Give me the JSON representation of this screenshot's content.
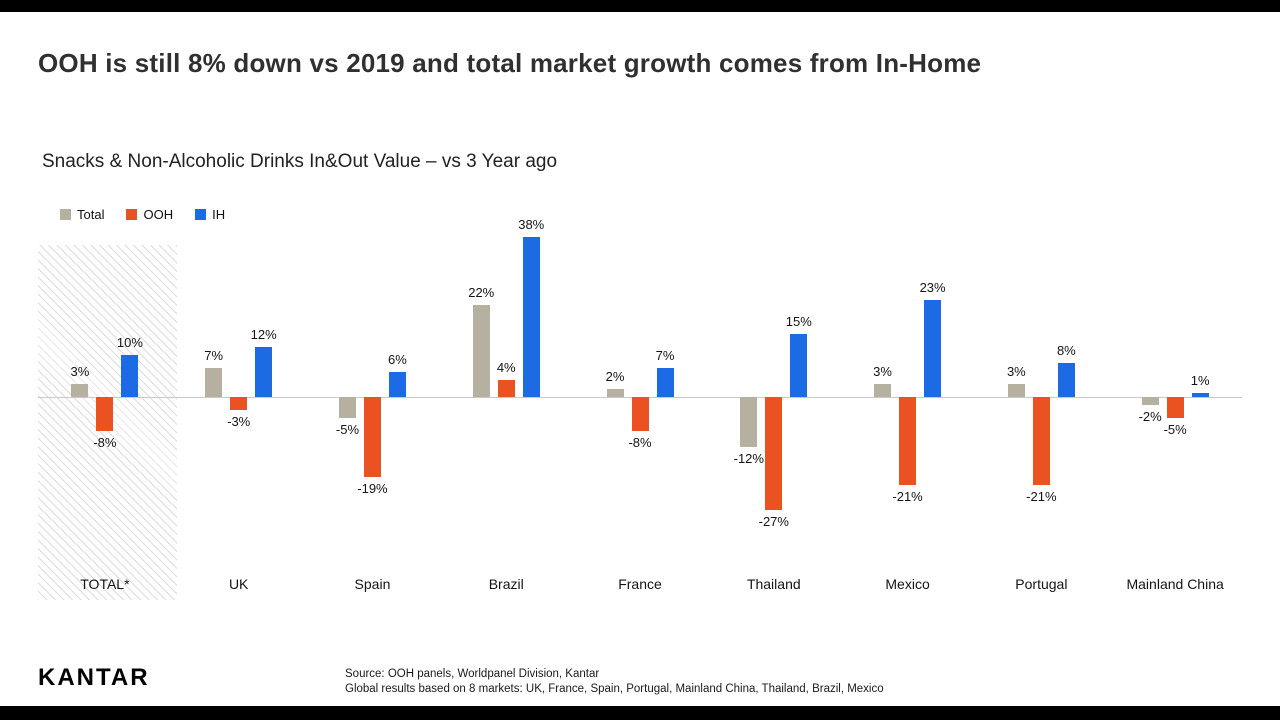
{
  "slide": {
    "title": "OOH is still 8% down vs 2019 and total market growth comes from In-Home",
    "subtitle": "Snacks & Non-Alcoholic Drinks In&Out Value – vs 3 Year ago"
  },
  "legend": [
    {
      "label": "Total",
      "color": "#b5b09f"
    },
    {
      "label": "OOH",
      "color": "#ea5221"
    },
    {
      "label": "IH",
      "color": "#1d6ae5"
    }
  ],
  "chart_data": {
    "type": "bar",
    "title": "Snacks & Non-Alcoholic Drinks In&Out Value – vs 3 Year ago",
    "categories": [
      "TOTAL*",
      "UK",
      "Spain",
      "Brazil",
      "France",
      "Thailand",
      "Mexico",
      "Portugal",
      "Mainland China"
    ],
    "series": [
      {
        "name": "Total",
        "color": "#b5b09f",
        "values": [
          3,
          7,
          -5,
          22,
          2,
          -12,
          3,
          3,
          -2
        ]
      },
      {
        "name": "OOH",
        "color": "#ea5221",
        "values": [
          -8,
          -3,
          -19,
          4,
          -8,
          -27,
          -21,
          -21,
          -5
        ]
      },
      {
        "name": "IH",
        "color": "#1d6ae5",
        "values": [
          10,
          12,
          6,
          38,
          7,
          15,
          23,
          8,
          1
        ]
      }
    ],
    "value_suffix": "%",
    "ylim": [
      -30,
      40
    ],
    "grid": "off",
    "axis": "zero baseline only, no y-axis ticks",
    "legend_position": "top-left",
    "highlight_category": "TOTAL*",
    "highlight_style": "diagonal-hatch-background"
  },
  "footer": {
    "logo": "KANTAR",
    "source_line1": "Source: OOH panels, Worldpanel Division, Kantar",
    "source_line2": "Global results based on 8 markets: UK, France, Spain, Portugal, Mainland China, Thailand, Brazil, Mexico"
  }
}
